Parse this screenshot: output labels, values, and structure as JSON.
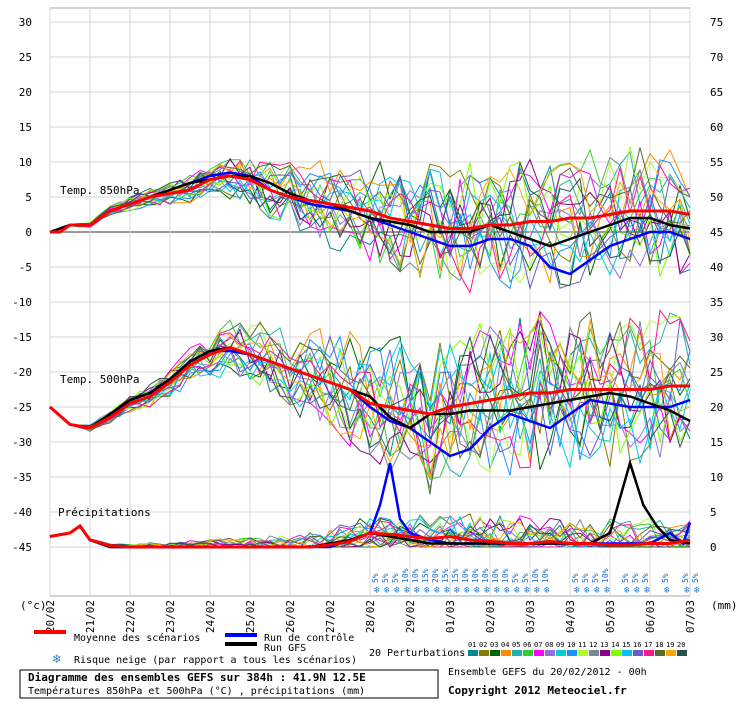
{
  "chart_data": {
    "type": "line",
    "title": "Diagramme des ensembles GEFS sur 384h : 41.9N 12.5E",
    "subtitle": "Températures 850hPa et 500hPa (°C) , précipitations (mm)",
    "left_axis": {
      "unit_label": "(°c)",
      "ticks": [
        30,
        25,
        20,
        15,
        10,
        5,
        0,
        -5,
        -10,
        -15,
        -20,
        -25,
        -30,
        -35,
        -40,
        -45
      ],
      "range": [
        -45,
        30
      ]
    },
    "right_axis": {
      "unit_label": "(mm)",
      "ticks": [
        75,
        70,
        65,
        60,
        55,
        50,
        45,
        40,
        35,
        30,
        25,
        20,
        15,
        10,
        5,
        0
      ],
      "range": [
        0,
        75
      ]
    },
    "x_labels": [
      "20/02",
      "21/02",
      "22/02",
      "23/02",
      "24/02",
      "25/02",
      "26/02",
      "27/02",
      "28/02",
      "29/02",
      "01/03",
      "02/03",
      "03/03",
      "04/03",
      "05/03",
      "06/03",
      "07/03"
    ],
    "x_range_hours": [
      0,
      384
    ],
    "grid": true,
    "section_labels": {
      "t850": "Temp. 850hPa",
      "t500": "Temp. 500hPa",
      "precip": "Précipitations"
    },
    "series": [
      {
        "name": "Moyenne des scénarios",
        "panel": "t850",
        "color": "#ff0000",
        "x": [
          0,
          6,
          12,
          18,
          24,
          36,
          48,
          60,
          72,
          84,
          96,
          108,
          120,
          132,
          144,
          156,
          168,
          180,
          192,
          204,
          216,
          228,
          240,
          252,
          264,
          276,
          288,
          300,
          312,
          324,
          336,
          348,
          360,
          372,
          384
        ],
        "y": [
          0,
          0,
          1,
          1,
          1,
          3,
          4,
          5,
          5.5,
          6,
          7.5,
          8,
          7.5,
          6,
          5,
          4.5,
          4,
          3.5,
          3,
          2,
          1.5,
          1,
          0.5,
          0.5,
          1,
          1,
          1.5,
          1.5,
          2,
          2,
          2.5,
          3,
          3,
          3,
          2.5
        ]
      },
      {
        "name": "Run de contrôle",
        "panel": "t850",
        "color": "#0000ff",
        "x": [
          0,
          12,
          24,
          36,
          48,
          60,
          72,
          84,
          96,
          108,
          120,
          132,
          144,
          156,
          168,
          180,
          192,
          204,
          216,
          228,
          240,
          252,
          264,
          276,
          288,
          300,
          312,
          324,
          336,
          348,
          360,
          372,
          384
        ],
        "y": [
          0,
          1,
          1,
          3,
          4,
          5,
          6,
          7,
          8,
          8.5,
          8,
          6,
          5,
          4,
          3.5,
          3,
          2,
          1,
          0,
          -1,
          -2,
          -2,
          -1,
          -1,
          -2,
          -5,
          -6,
          -4,
          -2,
          -1,
          0,
          0,
          -1
        ]
      },
      {
        "name": "Run GFS",
        "panel": "t850",
        "color": "#000000",
        "x": [
          0,
          12,
          24,
          36,
          48,
          60,
          72,
          84,
          96,
          108,
          120,
          132,
          144,
          156,
          168,
          180,
          192,
          204,
          216,
          228,
          240,
          252,
          264,
          276,
          288,
          300,
          312,
          324,
          336,
          348,
          360,
          372,
          384
        ],
        "y": [
          0,
          1,
          1,
          3,
          4,
          5,
          6,
          7,
          7.5,
          8,
          8,
          7,
          5.5,
          4.5,
          4,
          3,
          2,
          1.5,
          1,
          0,
          0,
          0,
          1,
          0,
          -1,
          -2,
          -1,
          0,
          1,
          2,
          2,
          1,
          0.5
        ]
      },
      {
        "name": "Moyenne des scénarios",
        "panel": "t500",
        "color": "#ff0000",
        "x": [
          0,
          12,
          24,
          36,
          48,
          60,
          72,
          84,
          96,
          108,
          120,
          132,
          144,
          156,
          168,
          180,
          192,
          204,
          216,
          228,
          240,
          252,
          264,
          276,
          288,
          300,
          312,
          324,
          336,
          348,
          360,
          372,
          384
        ],
        "y": [
          -25,
          -27.5,
          -28,
          -26.5,
          -24.5,
          -23.5,
          -21.5,
          -19,
          -17.5,
          -16.5,
          -17.5,
          -18.5,
          -19.5,
          -20.5,
          -21.5,
          -22.5,
          -24.5,
          -25,
          -25.5,
          -26,
          -25,
          -24.5,
          -24,
          -23.5,
          -23,
          -23,
          -22.5,
          -22.5,
          -22.5,
          -22.5,
          -22.5,
          -22,
          -22
        ]
      },
      {
        "name": "Run de contrôle",
        "panel": "t500",
        "color": "#0000ff",
        "x": [
          0,
          12,
          24,
          36,
          48,
          60,
          72,
          84,
          96,
          108,
          120,
          132,
          144,
          156,
          168,
          180,
          192,
          204,
          216,
          228,
          240,
          252,
          264,
          276,
          288,
          300,
          312,
          324,
          336,
          348,
          360,
          372,
          384
        ],
        "y": [
          -25,
          -27.5,
          -28,
          -26.5,
          -24,
          -23,
          -21,
          -18.5,
          -17,
          -17,
          -17.5,
          -18.5,
          -19.5,
          -20.5,
          -21.5,
          -22.5,
          -25,
          -27,
          -28,
          -30,
          -32,
          -31,
          -28,
          -26,
          -27,
          -28,
          -26,
          -24,
          -24.5,
          -25,
          -25,
          -25,
          -24
        ]
      },
      {
        "name": "Run GFS",
        "panel": "t500",
        "color": "#000000",
        "x": [
          0,
          12,
          24,
          36,
          48,
          60,
          72,
          84,
          96,
          108,
          120,
          132,
          144,
          156,
          168,
          180,
          192,
          204,
          216,
          228,
          240,
          252,
          264,
          276,
          288,
          300,
          312,
          324,
          336,
          348,
          360,
          372,
          384
        ],
        "y": [
          -25,
          -27.5,
          -28,
          -26,
          -24,
          -23,
          -21,
          -18.5,
          -17,
          -16.5,
          -17.5,
          -18.5,
          -19.5,
          -20.5,
          -21.5,
          -22.5,
          -23.5,
          -26.5,
          -28,
          -26,
          -26,
          -25.5,
          -25.5,
          -25.5,
          -25,
          -24.5,
          -24,
          -23.5,
          -23,
          -23.5,
          -24.5,
          -25.5,
          -27
        ]
      },
      {
        "name": "Moyenne des scénarios",
        "panel": "precip",
        "color": "#ff0000",
        "x": [
          0,
          12,
          18,
          24,
          36,
          48,
          60,
          72,
          84,
          96,
          108,
          120,
          132,
          144,
          156,
          168,
          180,
          192,
          204,
          216,
          228,
          240,
          252,
          264,
          276,
          288,
          300,
          312,
          324,
          336,
          348,
          360,
          372,
          384
        ],
        "y": [
          1.5,
          2,
          3,
          1,
          0.2,
          0,
          0,
          0,
          0,
          0,
          0,
          0,
          0,
          0,
          0,
          0.3,
          0.8,
          2,
          1.8,
          1.5,
          1.2,
          1.5,
          1,
          0.8,
          0.5,
          0.5,
          0.8,
          0.5,
          0.5,
          0.3,
          0.3,
          0.5,
          0.5,
          1
        ]
      },
      {
        "name": "Run de contrôle",
        "panel": "precip",
        "color": "#0000ff",
        "x": [
          0,
          12,
          18,
          24,
          36,
          48,
          60,
          72,
          84,
          96,
          108,
          120,
          132,
          144,
          156,
          168,
          180,
          192,
          198,
          204,
          210,
          216,
          228,
          240,
          252,
          264,
          276,
          288,
          300,
          312,
          324,
          336,
          348,
          360,
          372,
          380,
          384
        ],
        "y": [
          1.5,
          2,
          3,
          1,
          0,
          0,
          0,
          0,
          0,
          0,
          0,
          0,
          0,
          0,
          0,
          0,
          1,
          2,
          6,
          12,
          4,
          2,
          1,
          0.5,
          0.5,
          0.5,
          0.5,
          0.5,
          0.5,
          0.5,
          0.5,
          0.5,
          0.5,
          0.5,
          2,
          0.5,
          3.5
        ]
      },
      {
        "name": "Run GFS",
        "panel": "precip",
        "color": "#000000",
        "x": [
          0,
          12,
          18,
          24,
          36,
          48,
          60,
          72,
          84,
          96,
          108,
          120,
          132,
          144,
          156,
          168,
          180,
          192,
          204,
          216,
          228,
          240,
          252,
          264,
          276,
          288,
          300,
          312,
          324,
          336,
          342,
          348,
          356,
          364,
          372,
          384
        ],
        "y": [
          1.5,
          2,
          3,
          1,
          0,
          0,
          0,
          0,
          0,
          0,
          0,
          0,
          0,
          0,
          0,
          0.5,
          1,
          2,
          1.5,
          1,
          0.5,
          0.5,
          0.5,
          0.5,
          0.5,
          0.5,
          0.5,
          0.5,
          0.5,
          2,
          7,
          12,
          6,
          3,
          1,
          0.5
        ]
      }
    ],
    "snow_risk": {
      "start_hour": 195,
      "step_hours": 6,
      "values": [
        "5%",
        "5%",
        "5%",
        "10%",
        "10%",
        "15%",
        "20%",
        "15%",
        "15%",
        "10%",
        "10%",
        "10%",
        "10%",
        "10%",
        "5%",
        "5%",
        "10%",
        "10%",
        "",
        "",
        "5%",
        "5%",
        "5%",
        "10%",
        "",
        "5%",
        "5%",
        "5%",
        "",
        "5%",
        "",
        "5%",
        "5%"
      ]
    }
  },
  "legend": {
    "mean": "Moyenne des scénarios",
    "control": "Run de contrôle",
    "gfs": "Run GFS",
    "snow": "Risque neige (par rapport a tous les scénarios)",
    "perturbations": "20 Perturbations",
    "perturbation_numbers": [
      "01",
      "02",
      "03",
      "04",
      "05",
      "06",
      "07",
      "08",
      "09",
      "10",
      "11",
      "12",
      "13",
      "14",
      "15",
      "16",
      "17",
      "18",
      "19",
      "20"
    ],
    "perturbation_colors": [
      "#008b8b",
      "#808000",
      "#006400",
      "#ff8c00",
      "#20b2aa",
      "#32cd32",
      "#ff00ff",
      "#9370db",
      "#00ced1",
      "#1e90ff",
      "#adff2f",
      "#778899",
      "#8b008b",
      "#7fff00",
      "#00bfff",
      "#6a5acd",
      "#ff1493",
      "#556b2f",
      "#ffa500",
      "#2f4f4f"
    ],
    "mean_color": "#ff0000",
    "control_color": "#0000ff",
    "gfs_color": "#000000",
    "snow_color": "#2a7fd0"
  },
  "footer": {
    "title": "Diagramme des ensembles GEFS sur 384h : 41.9N 12.5E",
    "subtitle": "Températures 850hPa et 500hPa (°C) , précipitations (mm)",
    "run_info": "Ensemble GEFS du 20/02/2012 - 00h",
    "copyright": "Copyright 2012 Meteociel.fr"
  }
}
